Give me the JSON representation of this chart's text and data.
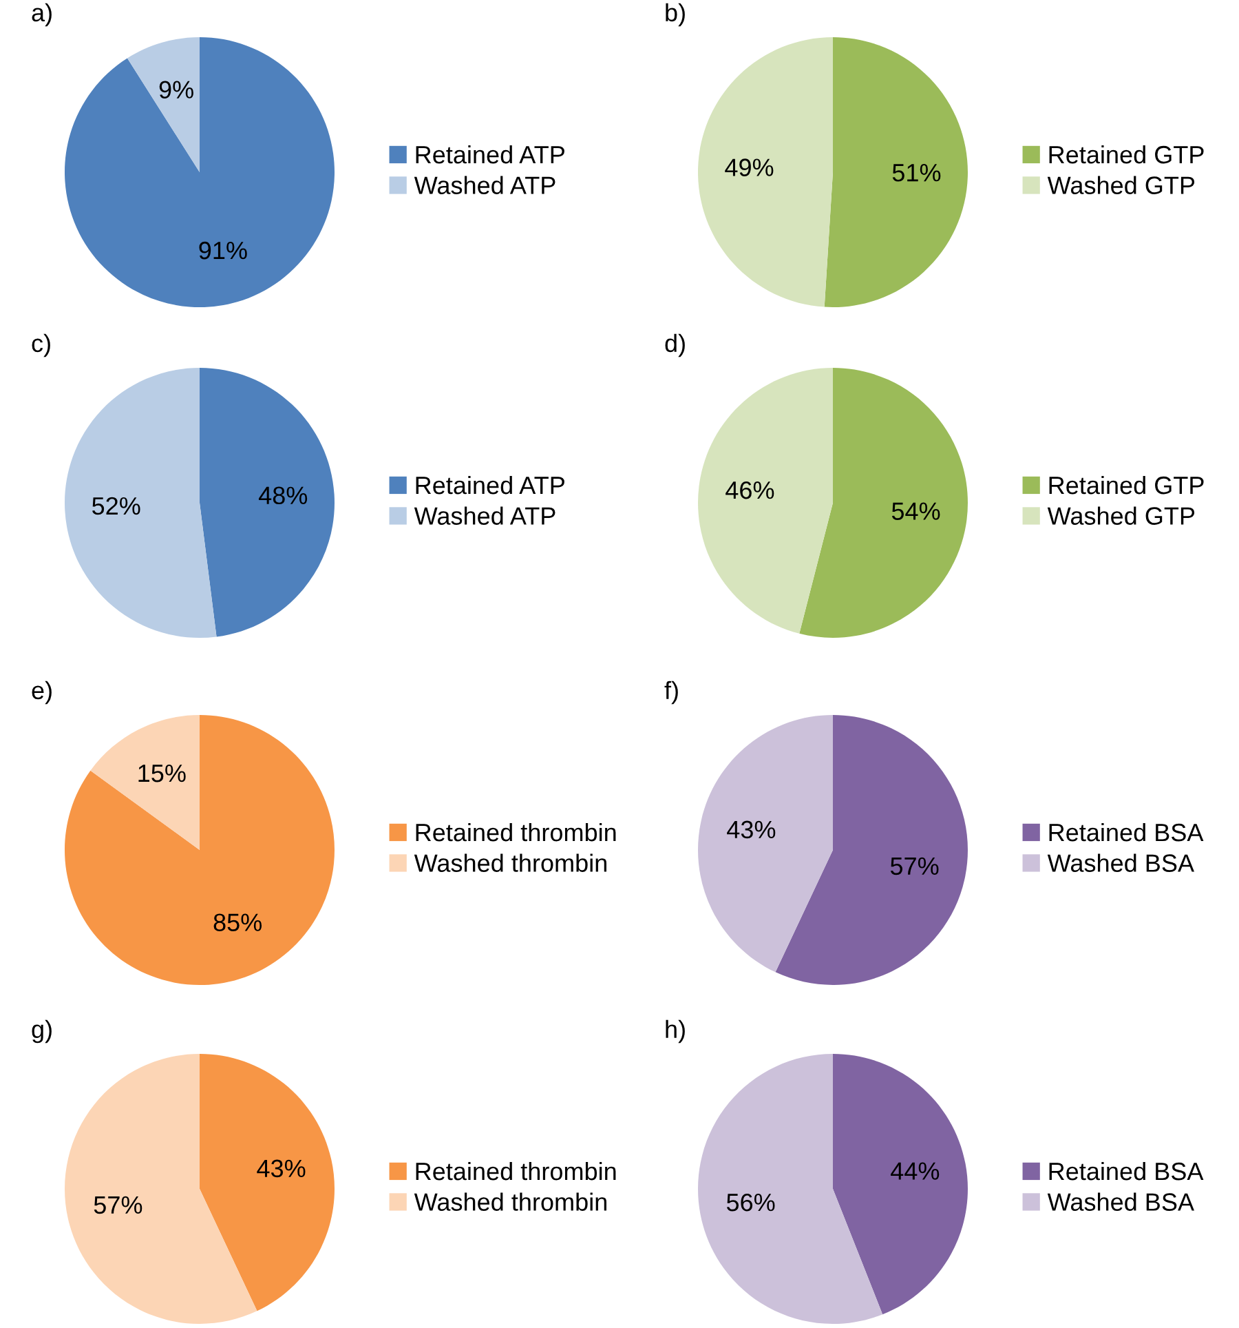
{
  "chart_data": [
    {
      "type": "pie",
      "title": "a)",
      "categories": [
        "Retained ATP",
        "Washed ATP"
      ],
      "values": [
        91,
        9
      ],
      "value_labels": [
        "91%",
        "9%"
      ],
      "colors": [
        "#4f81bd",
        "#b9cde5"
      ],
      "legend": "right"
    },
    {
      "type": "pie",
      "title": "b)",
      "categories": [
        "Retained GTP",
        "Washed GTP"
      ],
      "values": [
        51,
        49
      ],
      "value_labels": [
        "51%",
        "49%"
      ],
      "colors": [
        "#9bbb59",
        "#d7e4bd"
      ],
      "legend": "right"
    },
    {
      "type": "pie",
      "title": "c)",
      "categories": [
        "Retained ATP",
        "Washed ATP"
      ],
      "values": [
        48,
        52
      ],
      "value_labels": [
        "48%",
        "52%"
      ],
      "colors": [
        "#4f81bd",
        "#b9cde5"
      ],
      "legend": "right"
    },
    {
      "type": "pie",
      "title": "d)",
      "categories": [
        "Retained GTP",
        "Washed GTP"
      ],
      "values": [
        54,
        46
      ],
      "value_labels": [
        "54%",
        "46%"
      ],
      "colors": [
        "#9bbb59",
        "#d7e4bd"
      ],
      "legend": "right"
    },
    {
      "type": "pie",
      "title": "e)",
      "categories": [
        "Retained thrombin",
        "Washed thrombin"
      ],
      "values": [
        85,
        15
      ],
      "value_labels": [
        "85%",
        "15%"
      ],
      "colors": [
        "#f79646",
        "#fcd5b5"
      ],
      "legend": "right"
    },
    {
      "type": "pie",
      "title": "f)",
      "categories": [
        "Retained BSA",
        "Washed BSA"
      ],
      "values": [
        57,
        43
      ],
      "value_labels": [
        "57%",
        "43%"
      ],
      "colors": [
        "#8064a2",
        "#ccc1da"
      ],
      "legend": "right"
    },
    {
      "type": "pie",
      "title": "g)",
      "categories": [
        "Retained thrombin",
        "Washed thrombin"
      ],
      "values": [
        43,
        57
      ],
      "value_labels": [
        "43%",
        "57%"
      ],
      "colors": [
        "#f79646",
        "#fcd5b5"
      ],
      "legend": "right"
    },
    {
      "type": "pie",
      "title": "h)",
      "categories": [
        "Retained BSA",
        "Washed BSA"
      ],
      "values": [
        44,
        56
      ],
      "value_labels": [
        "44%",
        "56%"
      ],
      "colors": [
        "#8064a2",
        "#ccc1da"
      ],
      "legend": "right"
    }
  ]
}
